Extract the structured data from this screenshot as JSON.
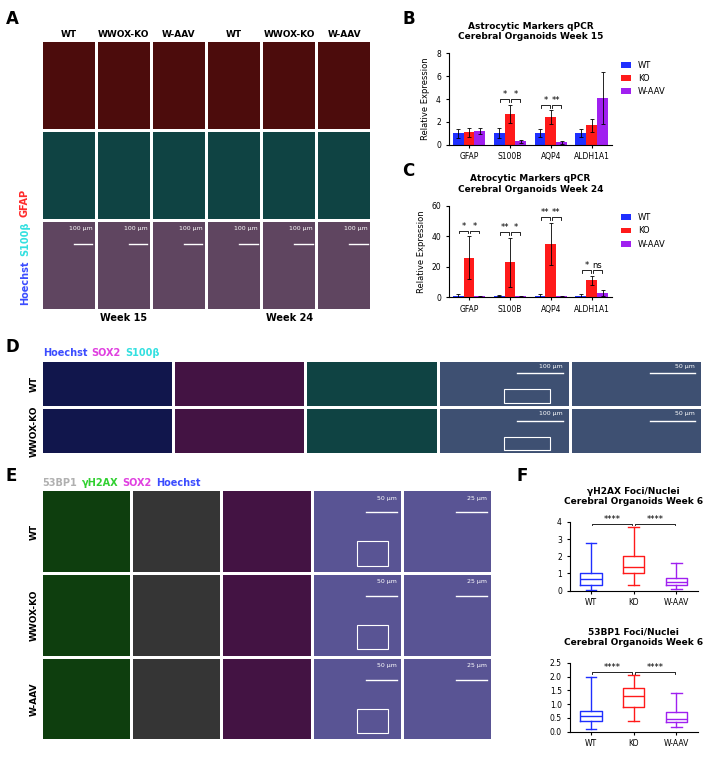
{
  "image_panels": [
    {
      "label": "A",
      "channels": [
        {
          "name": "Hoechst",
          "color": "#3b4cff"
        },
        {
          "name": "S100β",
          "color": "#33e0e0"
        },
        {
          "name": "GFAP",
          "color": "#ff2a2a"
        }
      ],
      "columns": [
        "WT",
        "WWOX-KO",
        "W-AAV",
        "WT",
        "WWOX-KO",
        "W-AAV"
      ],
      "rows": [
        [
          "GFAP"
        ],
        [
          "S100β"
        ],
        [
          "Hoechst",
          "S100β",
          "GFAP"
        ]
      ],
      "scale_bar": "100 µm",
      "groups": [
        "Week 15",
        "Week 24"
      ]
    },
    {
      "label": "D",
      "channels": [
        {
          "name": "Hoechst",
          "color": "#3b4cff"
        },
        {
          "name": "SOX2",
          "color": "#e040e0"
        },
        {
          "name": "S100β",
          "color": "#33e0e0"
        }
      ],
      "rows": [
        "WT",
        "WWOX-KO"
      ],
      "columns": [
        [
          "Hoechst"
        ],
        [
          "SOX2"
        ],
        [
          "S100β"
        ],
        [
          "SOX2",
          "S100β"
        ],
        [
          "SOX2",
          "S100β"
        ]
      ],
      "scale_bar": "100 µm",
      "zoom_scale_bar": "50 µm"
    },
    {
      "label": "E",
      "channels": [
        {
          "name": "53BP1",
          "color": "#b0b0b0"
        },
        {
          "name": "γH2AX",
          "color": "#30d030"
        },
        {
          "name": "SOX2",
          "color": "#e040e0"
        },
        {
          "name": "Hoechst",
          "color": "#3b4cff"
        }
      ],
      "rows": [
        "WT",
        "WWOX-KO",
        "W-AAV"
      ],
      "columns": [
        [
          "γH2AX"
        ],
        [
          "53BP1"
        ],
        [
          "SOX2"
        ],
        [
          "53BP1",
          "γH2AX",
          "SOX2",
          "Hoechst"
        ],
        [
          "53BP1",
          "γH2AX",
          "SOX2",
          "Hoechst"
        ]
      ],
      "scale_bar": "50 µm",
      "zoom_scale_bar": "25 µm"
    }
  ],
  "chart_data": [
    {
      "label": "B",
      "type": "bar",
      "title": "Astrocytic Markers qPCR",
      "subtitle": "Cerebral Organoids Week 15",
      "y_label": "Relative Expression",
      "categories": [
        "GFAP",
        "S100B",
        "AQP4",
        "ALDH1A1"
      ],
      "series": [
        {
          "name": "WT",
          "color": "#1f2fff",
          "values": [
            1.0,
            1.0,
            1.0,
            1.0
          ],
          "errors": [
            0.4,
            0.45,
            0.35,
            0.35
          ]
        },
        {
          "name": "KO",
          "color": "#ff1a1a",
          "values": [
            1.1,
            2.7,
            2.4,
            1.7
          ],
          "errors": [
            0.4,
            0.8,
            0.6,
            0.55
          ]
        },
        {
          "name": "W-AAV",
          "color": "#a020f0",
          "values": [
            1.2,
            0.3,
            0.2,
            4.1
          ],
          "errors": [
            0.3,
            0.15,
            0.1,
            2.3
          ]
        }
      ],
      "ylim": [
        0,
        8
      ],
      "yticks": [
        0,
        2,
        4,
        6,
        8
      ],
      "legend": "right",
      "significance": [
        {
          "category": "S100B",
          "groups": [
            "WT",
            "KO"
          ],
          "label": "*"
        },
        {
          "category": "S100B",
          "groups": [
            "KO",
            "W-AAV"
          ],
          "label": "*"
        },
        {
          "category": "AQP4",
          "groups": [
            "WT",
            "KO"
          ],
          "label": "*"
        },
        {
          "category": "AQP4",
          "groups": [
            "KO",
            "W-AAV"
          ],
          "label": "**"
        }
      ]
    },
    {
      "label": "C",
      "type": "bar",
      "title": "Atrocytic Markers qPCR",
      "subtitle": "Cerebral Organoids Week 24",
      "y_label": "Relative Expression",
      "categories": [
        "GFAP",
        "S100B",
        "AQP4",
        "ALDH1A1"
      ],
      "series": [
        {
          "name": "WT",
          "color": "#1f2fff",
          "values": [
            1.0,
            1.0,
            1.0,
            1.0
          ],
          "errors": [
            1.0,
            0.5,
            1.0,
            1.2
          ]
        },
        {
          "name": "KO",
          "color": "#ff1a1a",
          "values": [
            26,
            23,
            35,
            11
          ],
          "errors": [
            14,
            16,
            14,
            3
          ]
        },
        {
          "name": "W-AAV",
          "color": "#a020f0",
          "values": [
            0.5,
            0.5,
            0.5,
            3
          ],
          "errors": [
            0.3,
            0.3,
            0.3,
            2
          ]
        }
      ],
      "ylim": [
        0,
        60
      ],
      "yticks": [
        0,
        20,
        40,
        60
      ],
      "legend": "right",
      "significance": [
        {
          "category": "GFAP",
          "groups": [
            "WT",
            "KO"
          ],
          "label": "*"
        },
        {
          "category": "GFAP",
          "groups": [
            "KO",
            "W-AAV"
          ],
          "label": "*"
        },
        {
          "category": "S100B",
          "groups": [
            "WT",
            "KO"
          ],
          "label": "**"
        },
        {
          "category": "S100B",
          "groups": [
            "KO",
            "W-AAV"
          ],
          "label": "*"
        },
        {
          "category": "AQP4",
          "groups": [
            "WT",
            "KO"
          ],
          "label": "**"
        },
        {
          "category": "AQP4",
          "groups": [
            "KO",
            "W-AAV"
          ],
          "label": "**"
        },
        {
          "category": "ALDH1A1",
          "groups": [
            "WT",
            "KO"
          ],
          "label": "*"
        },
        {
          "category": "ALDH1A1",
          "groups": [
            "KO",
            "W-AAV"
          ],
          "label": "ns"
        }
      ]
    },
    {
      "label": "F",
      "type": "box",
      "title": "γH2AX Foci/Nuclei",
      "subtitle": "Cerebral Organoids Week 6",
      "boxes": [
        {
          "name": "WT",
          "color": "#1f2fff",
          "min": 0.05,
          "q1": 0.35,
          "median": 0.7,
          "q3": 1.0,
          "max": 2.8
        },
        {
          "name": "KO",
          "color": "#ff1a1a",
          "min": 0.35,
          "q1": 1.05,
          "median": 1.4,
          "q3": 2.0,
          "max": 3.7
        },
        {
          "name": "W-AAV",
          "color": "#a020f0",
          "min": 0.1,
          "q1": 0.3,
          "median": 0.5,
          "q3": 0.75,
          "max": 1.6
        }
      ],
      "ylim": [
        0,
        4
      ],
      "yticks": [
        0,
        1,
        2,
        3,
        4
      ],
      "significance": [
        {
          "groups": [
            "WT",
            "KO"
          ],
          "label": "****"
        },
        {
          "groups": [
            "KO",
            "W-AAV"
          ],
          "label": "****"
        }
      ]
    },
    {
      "type": "box",
      "title": "53BP1 Foci/Nuclei",
      "subtitle": "Cerebral Organoids Week 6",
      "boxes": [
        {
          "name": "WT",
          "color": "#1f2fff",
          "min": 0.1,
          "q1": 0.4,
          "median": 0.55,
          "q3": 0.75,
          "max": 2.0
        },
        {
          "name": "KO",
          "color": "#ff1a1a",
          "min": 0.4,
          "q1": 0.9,
          "median": 1.3,
          "q3": 1.6,
          "max": 2.05
        },
        {
          "name": "W-AAV",
          "color": "#a020f0",
          "min": 0.15,
          "q1": 0.35,
          "median": 0.45,
          "q3": 0.7,
          "max": 1.42
        }
      ],
      "ylim": [
        0,
        2.5
      ],
      "yticks": [
        {
          "value": 0,
          "label": "0.0"
        },
        0.5,
        {
          "value": 1,
          "label": "1.0"
        },
        1.5,
        {
          "value": 2,
          "label": "2.0"
        },
        2.5
      ],
      "significance": [
        {
          "groups": [
            "WT",
            "KO"
          ],
          "label": "****"
        },
        {
          "groups": [
            "KO",
            "W-AAV"
          ],
          "label": "****"
        }
      ]
    }
  ]
}
